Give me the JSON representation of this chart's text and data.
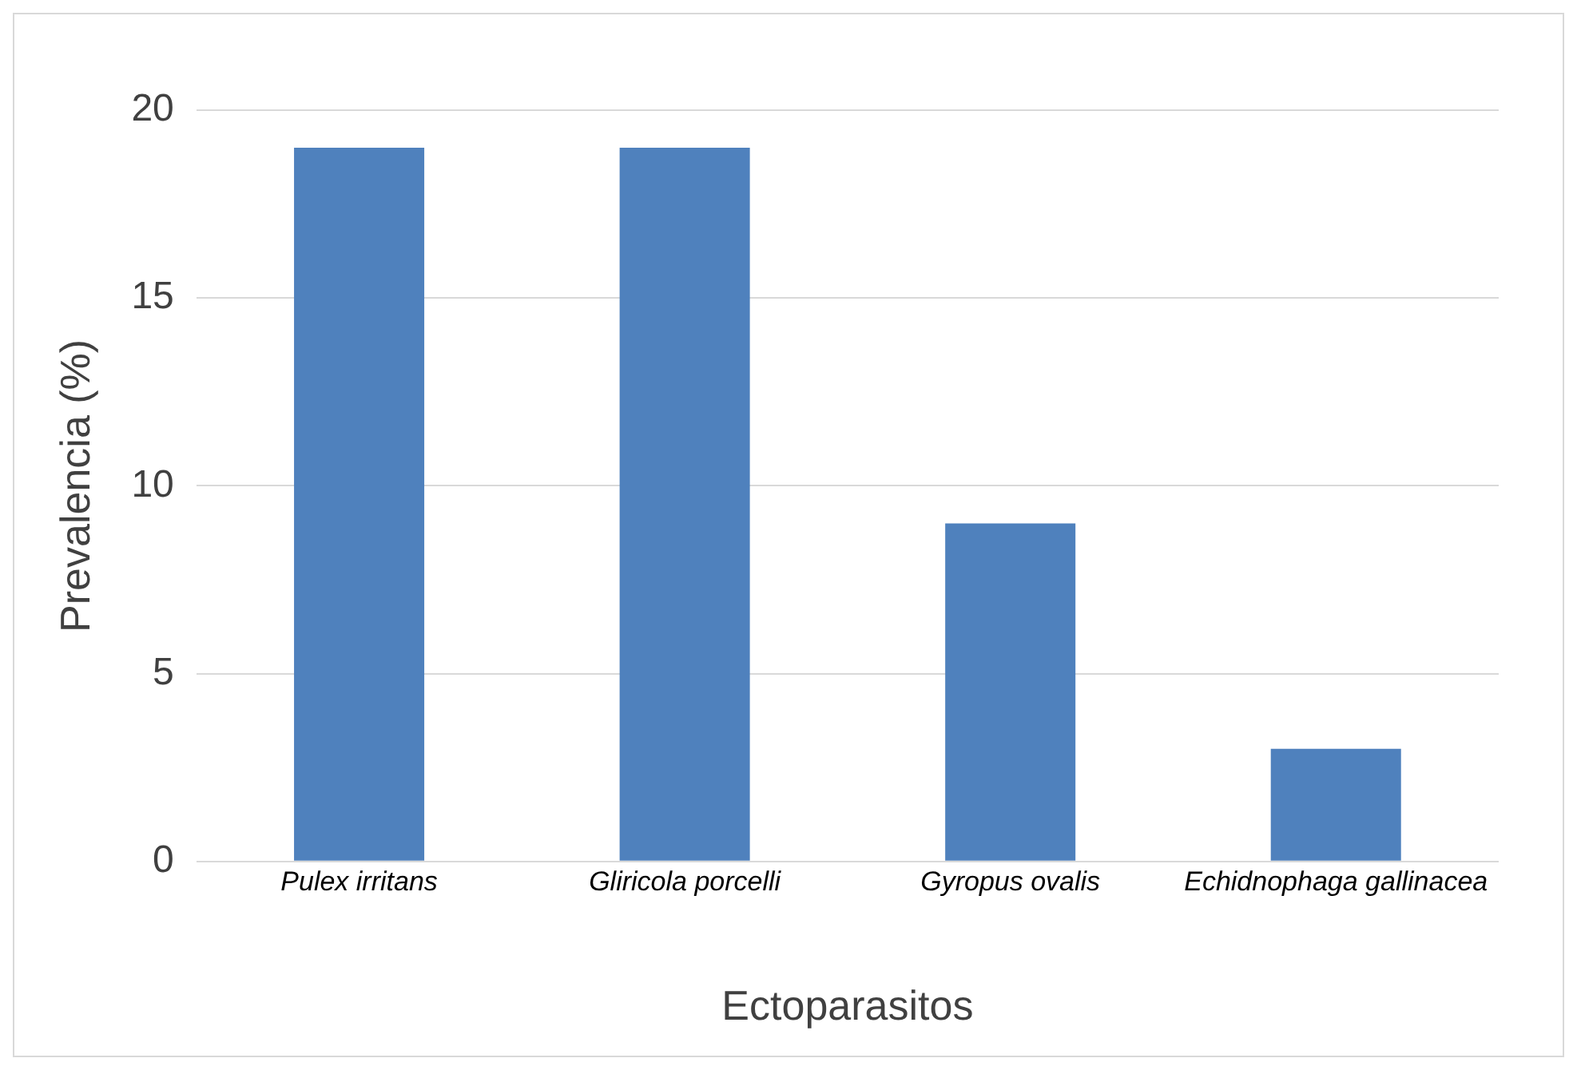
{
  "chart_data": {
    "type": "bar",
    "xlabel": "Ectoparasitos",
    "ylabel": "Prevalencia (%)",
    "categories": [
      "Pulex irritans",
      "Gliricola porcelli",
      "Gyropus ovalis",
      "Echidnophaga gallinacea"
    ],
    "values": [
      19,
      19,
      9,
      3
    ],
    "color": "#4f81bd",
    "ylim": [
      0,
      20
    ],
    "yticks": [
      0,
      5,
      10,
      15,
      20
    ],
    "grid": "y",
    "legend": false
  }
}
